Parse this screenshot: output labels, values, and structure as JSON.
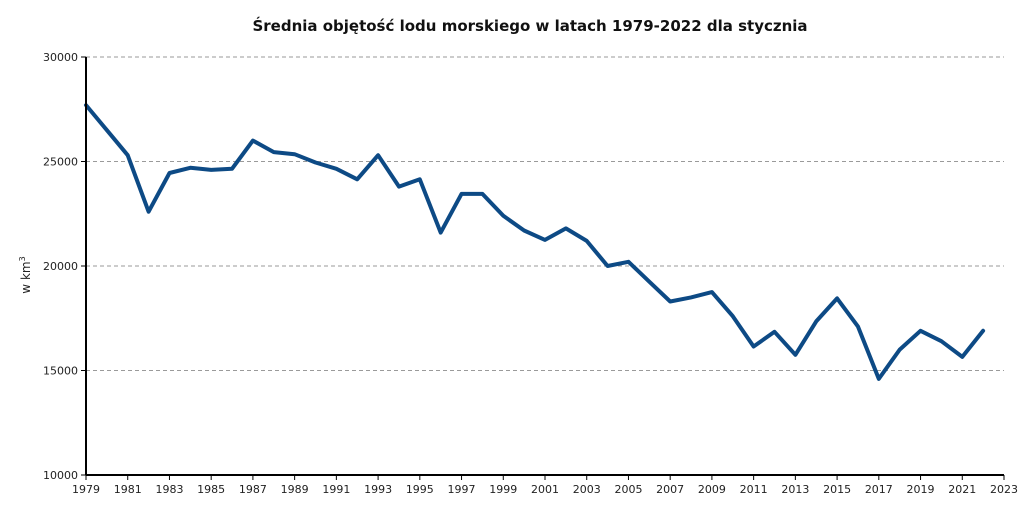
{
  "chart_data": {
    "type": "line",
    "title": "Średnia objętość lodu morskiego w latach 1979-2022 dla stycznia",
    "xlabel": "",
    "ylabel": "w km",
    "ylabel_superscript": "3",
    "xlim": [
      1979,
      2023
    ],
    "ylim": [
      10000,
      30000
    ],
    "x_ticks": [
      1979,
      1981,
      1983,
      1985,
      1987,
      1989,
      1991,
      1993,
      1995,
      1997,
      1999,
      2001,
      2003,
      2005,
      2007,
      2009,
      2011,
      2013,
      2015,
      2017,
      2019,
      2021,
      2023
    ],
    "y_ticks": [
      10000,
      15000,
      20000,
      25000,
      30000
    ],
    "grid": "horizontal dashed",
    "color": "#0d4a85",
    "x": [
      1979,
      1980,
      1981,
      1982,
      1983,
      1984,
      1985,
      1986,
      1987,
      1988,
      1989,
      1990,
      1991,
      1992,
      1993,
      1994,
      1995,
      1996,
      1997,
      1998,
      1999,
      2000,
      2001,
      2002,
      2003,
      2004,
      2005,
      2006,
      2007,
      2008,
      2009,
      2010,
      2011,
      2012,
      2013,
      2014,
      2015,
      2016,
      2017,
      2018,
      2019,
      2020,
      2021,
      2022
    ],
    "series": [
      {
        "values": [
          27700,
          26500,
          25300,
          22600,
          24450,
          24700,
          24600,
          24650,
          26000,
          25450,
          25350,
          24950,
          24650,
          24150,
          25300,
          23800,
          24150,
          21600,
          23450,
          23450,
          22400,
          21700,
          21250,
          21800,
          21200,
          20000,
          20200,
          19250,
          18300,
          18500,
          18750,
          17600,
          16150,
          16850,
          15750,
          17350,
          18450,
          17100,
          14600,
          16000,
          16900,
          16400,
          15650,
          16900
        ]
      }
    ]
  }
}
